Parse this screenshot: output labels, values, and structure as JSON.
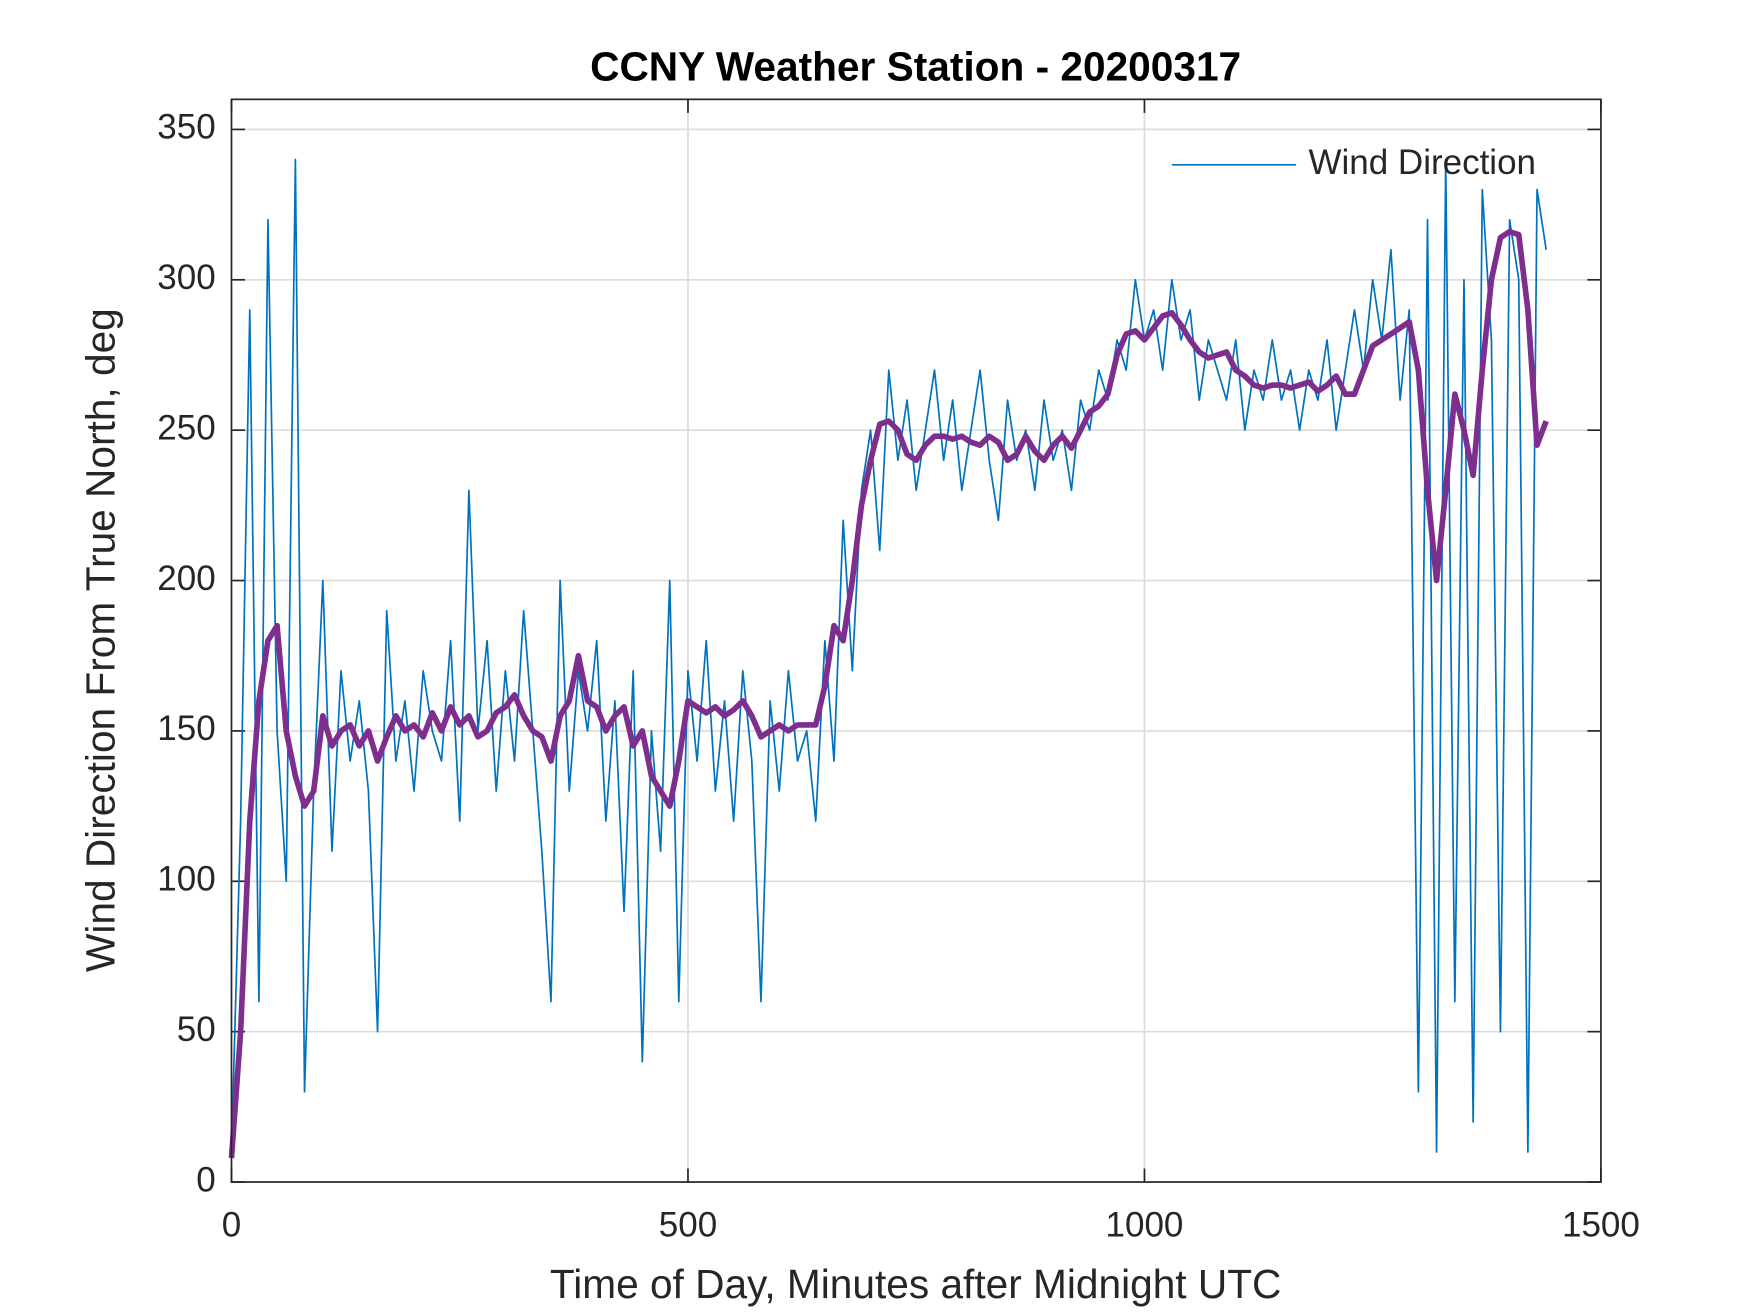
{
  "chart_data": {
    "type": "line",
    "title": "CCNY Weather Station - 20200317",
    "xlabel": "Time of Day, Minutes after Midnight UTC",
    "ylabel": "Wind Direction From True North, deg",
    "x": [
      0,
      10,
      20,
      30,
      40,
      50,
      60,
      70,
      80,
      90,
      100,
      110,
      120,
      130,
      140,
      150,
      160,
      170,
      180,
      190,
      200,
      210,
      220,
      230,
      240,
      250,
      260,
      270,
      280,
      290,
      300,
      310,
      320,
      330,
      340,
      350,
      360,
      370,
      380,
      390,
      400,
      410,
      420,
      430,
      440,
      450,
      460,
      470,
      480,
      490,
      500,
      510,
      520,
      530,
      540,
      550,
      560,
      570,
      580,
      590,
      600,
      610,
      620,
      630,
      640,
      650,
      660,
      670,
      680,
      690,
      700,
      710,
      720,
      730,
      740,
      750,
      760,
      770,
      780,
      790,
      800,
      810,
      820,
      830,
      840,
      850,
      860,
      870,
      880,
      890,
      900,
      910,
      920,
      930,
      940,
      950,
      960,
      970,
      980,
      990,
      1000,
      1010,
      1020,
      1030,
      1040,
      1050,
      1060,
      1070,
      1080,
      1090,
      1100,
      1110,
      1120,
      1130,
      1140,
      1150,
      1160,
      1170,
      1180,
      1190,
      1200,
      1210,
      1220,
      1230,
      1240,
      1250,
      1260,
      1270,
      1280,
      1290,
      1300,
      1310,
      1320,
      1330,
      1340,
      1350,
      1360,
      1370,
      1380,
      1390,
      1400,
      1410,
      1420,
      1430,
      1440
    ],
    "series": [
      {
        "name": "Wind Direction",
        "color": "#0072bd",
        "width": 1.5,
        "values": [
          10,
          120,
          290,
          60,
          320,
          150,
          100,
          340,
          30,
          130,
          200,
          110,
          170,
          140,
          160,
          130,
          50,
          190,
          140,
          160,
          130,
          170,
          150,
          140,
          180,
          120,
          230,
          150,
          180,
          130,
          170,
          140,
          190,
          150,
          110,
          60,
          200,
          130,
          170,
          150,
          180,
          120,
          160,
          90,
          170,
          40,
          150,
          110,
          200,
          60,
          170,
          140,
          180,
          130,
          160,
          120,
          170,
          140,
          60,
          160,
          130,
          170,
          140,
          150,
          120,
          180,
          140,
          220,
          170,
          230,
          250,
          210,
          270,
          240,
          260,
          230,
          250,
          270,
          240,
          260,
          230,
          250,
          270,
          240,
          220,
          260,
          240,
          250,
          230,
          260,
          240,
          250,
          230,
          260,
          250,
          270,
          260,
          280,
          270,
          300,
          280,
          290,
          270,
          300,
          280,
          290,
          260,
          280,
          270,
          260,
          280,
          250,
          270,
          260,
          280,
          260,
          270,
          250,
          270,
          260,
          280,
          250,
          270,
          290,
          270,
          300,
          280,
          310,
          260,
          290,
          30,
          320,
          10,
          340,
          60,
          300,
          20,
          330,
          280,
          50,
          320,
          300,
          10,
          330,
          310
        ]
      },
      {
        "color": "#7e2f8e",
        "width": 5,
        "values": [
          8,
          50,
          120,
          160,
          180,
          185,
          150,
          135,
          125,
          130,
          155,
          145,
          150,
          152,
          145,
          150,
          140,
          148,
          155,
          150,
          152,
          148,
          156,
          150,
          158,
          152,
          155,
          148,
          150,
          156,
          158,
          162,
          155,
          150,
          148,
          140,
          155,
          160,
          175,
          160,
          158,
          150,
          155,
          158,
          145,
          150,
          135,
          130,
          125,
          140,
          160,
          158,
          156,
          158,
          155,
          157,
          160,
          155,
          148,
          150,
          152,
          150,
          152,
          152,
          152,
          165,
          185,
          180,
          200,
          225,
          240,
          252,
          253,
          250,
          242,
          240,
          245,
          248,
          248,
          247,
          248,
          246,
          245,
          248,
          246,
          240,
          242,
          248,
          243,
          240,
          245,
          248,
          244,
          250,
          256,
          258,
          262,
          275,
          282,
          283,
          280,
          284,
          288,
          289,
          285,
          280,
          276,
          274,
          275,
          276,
          270,
          268,
          265,
          264,
          265,
          265,
          264,
          265,
          266,
          263,
          265,
          268,
          262,
          262,
          270,
          278,
          280,
          282,
          284,
          286,
          270,
          230,
          200,
          230,
          262,
          250,
          235,
          270,
          300,
          314,
          316,
          315,
          290,
          245,
          253
        ]
      }
    ],
    "xlim": [
      0,
      1500
    ],
    "xticks": [
      0,
      500,
      1000,
      1500
    ],
    "ylim": [
      0,
      360
    ],
    "yticks": [
      0,
      50,
      100,
      150,
      200,
      250,
      300,
      350
    ],
    "grid": true,
    "legend": "upper right"
  }
}
